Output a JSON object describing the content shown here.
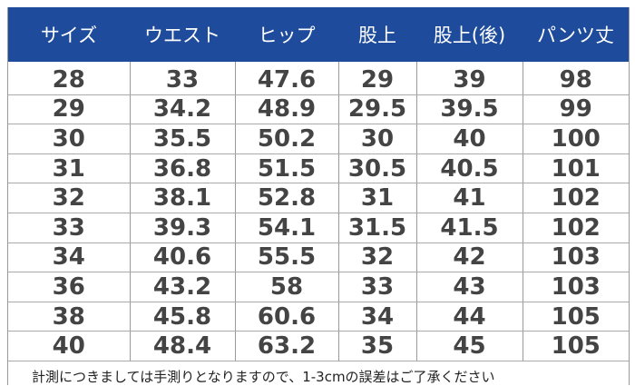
{
  "table": {
    "columns": [
      "サイズ",
      "ウエスト",
      "ヒップ",
      "股上",
      "股上(後)",
      "パンツ丈"
    ],
    "rows": [
      [
        "28",
        "33",
        "47.6",
        "29",
        "39",
        "98"
      ],
      [
        "29",
        "34.2",
        "48.9",
        "29.5",
        "39.5",
        "99"
      ],
      [
        "30",
        "35.5",
        "50.2",
        "30",
        "40",
        "100"
      ],
      [
        "31",
        "36.8",
        "51.5",
        "30.5",
        "40.5",
        "101"
      ],
      [
        "32",
        "38.1",
        "52.8",
        "31",
        "41",
        "102"
      ],
      [
        "33",
        "39.3",
        "54.1",
        "31.5",
        "41.5",
        "102"
      ],
      [
        "34",
        "40.6",
        "55.5",
        "32",
        "42",
        "103"
      ],
      [
        "36",
        "43.2",
        "58",
        "33",
        "43",
        "103"
      ],
      [
        "38",
        "45.8",
        "60.6",
        "34",
        "44",
        "105"
      ],
      [
        "40",
        "48.4",
        "63.2",
        "35",
        "45",
        "105"
      ]
    ],
    "note": "計測につきましては手測りとなりますので、1-3cmの誤差はご了承ください"
  }
}
